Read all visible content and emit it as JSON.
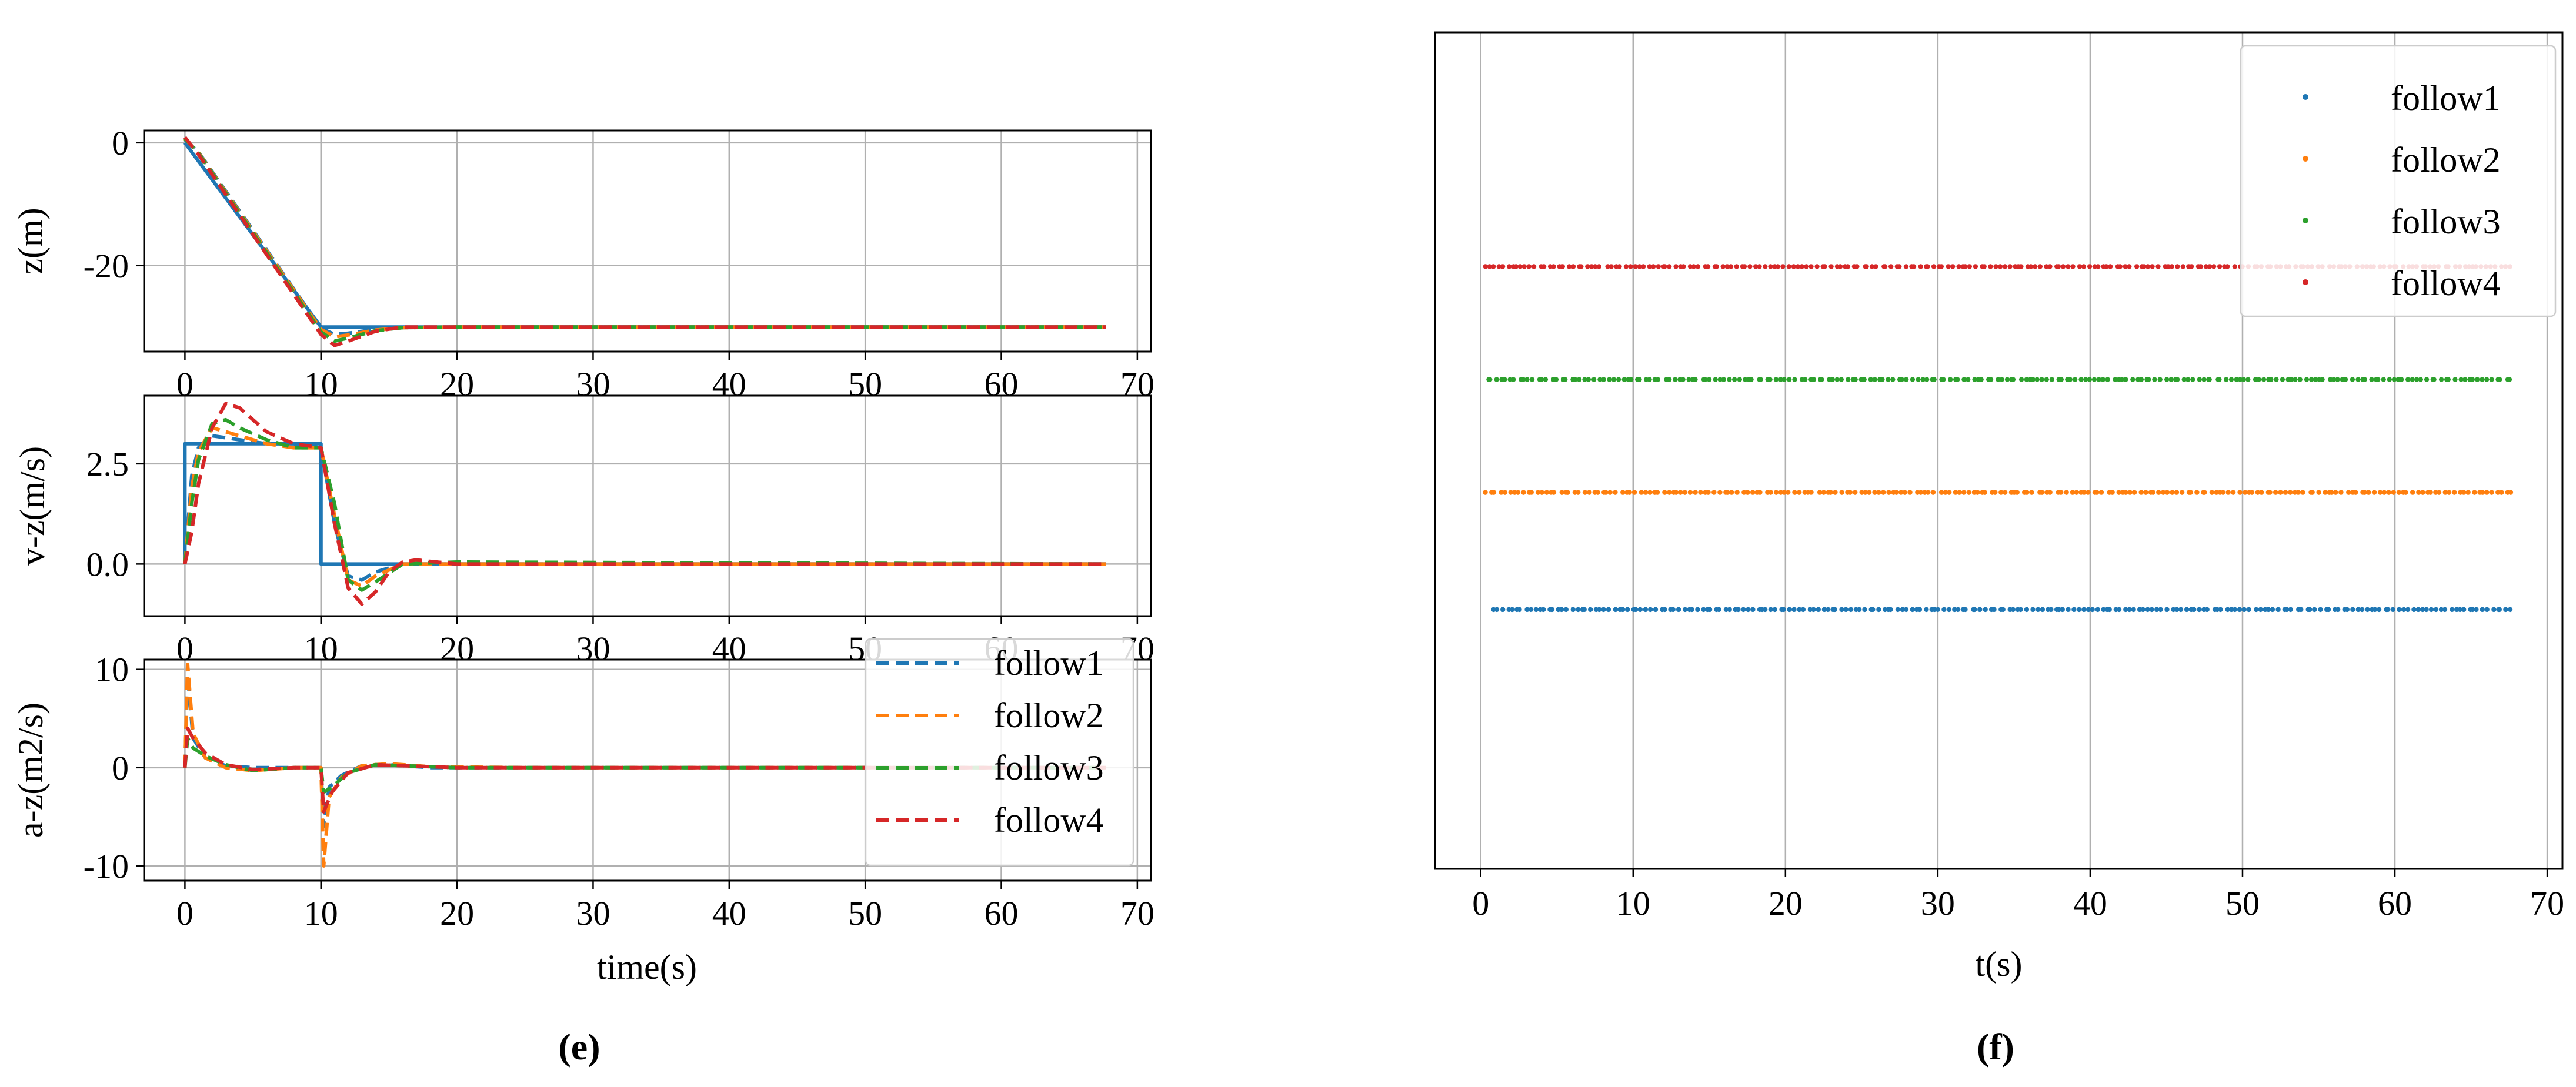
{
  "colors": {
    "reference": "#1f77b4",
    "follow1": "#1f77b4",
    "follow2": "#ff7f0e",
    "follow3": "#2ca02c",
    "follow4": "#d62728"
  },
  "captions": {
    "e": "(e)",
    "f": "(f)"
  },
  "chart_data": [
    {
      "panel": "e-top",
      "type": "line",
      "ylabel": "z(m)",
      "xlim": [
        -3,
        71
      ],
      "ylim": [
        -34,
        2
      ],
      "xticks": [
        0,
        10,
        20,
        30,
        40,
        50,
        60,
        70
      ],
      "xtick_labels": [
        "0",
        "10",
        "20",
        "30",
        "40",
        "50",
        "60",
        "70"
      ],
      "yticks": [
        0,
        -20
      ],
      "ytick_labels": [
        "0",
        "-20"
      ],
      "grid": true,
      "series": [
        {
          "style": "solid",
          "color": "reference",
          "x": [
            0,
            10,
            67.7
          ],
          "y": [
            0,
            -30,
            -30
          ]
        },
        {
          "style": "dashed",
          "color": "follow1",
          "x": [
            0,
            1,
            10,
            11,
            12,
            14,
            16,
            20,
            67.7
          ],
          "y": [
            0.5,
            -1.5,
            -30.2,
            -31.2,
            -31.0,
            -30.4,
            -30.1,
            -30.0,
            -30.0
          ]
        },
        {
          "style": "dashed",
          "color": "follow2",
          "x": [
            0,
            1,
            10,
            11,
            12,
            14,
            16,
            20,
            67.7
          ],
          "y": [
            0.6,
            -1.6,
            -30.4,
            -31.6,
            -31.3,
            -30.5,
            -30.1,
            -30.0,
            -30.0
          ]
        },
        {
          "style": "dashed",
          "color": "follow3",
          "x": [
            0,
            1,
            10,
            11,
            12,
            14,
            16,
            20,
            67.7
          ],
          "y": [
            0.7,
            -1.7,
            -30.8,
            -32.3,
            -31.8,
            -30.6,
            -30.1,
            -30.0,
            -30.0
          ]
        },
        {
          "style": "dashed",
          "color": "follow4",
          "x": [
            0,
            1,
            10,
            11,
            12,
            14,
            16,
            20,
            67.7
          ],
          "y": [
            0.9,
            -1.9,
            -31.2,
            -33.0,
            -32.3,
            -30.7,
            -30.0,
            -30.0,
            -30.0
          ]
        }
      ]
    },
    {
      "panel": "e-middle",
      "type": "line",
      "ylabel": "v-z(m/s)",
      "xlim": [
        -3,
        71
      ],
      "ylim": [
        -1.3,
        4.2
      ],
      "xticks": [
        0,
        10,
        20,
        30,
        40,
        50,
        60,
        70
      ],
      "xtick_labels": [
        "0",
        "10",
        "20",
        "30",
        "40",
        "50",
        "60",
        "70"
      ],
      "yticks": [
        2.5,
        0.0
      ],
      "ytick_labels": [
        "2.5",
        "0.0"
      ],
      "grid": true,
      "series": [
        {
          "style": "solid",
          "color": "reference",
          "x": [
            0,
            0,
            10,
            10,
            67.7
          ],
          "y": [
            0,
            3.0,
            3.0,
            0,
            0
          ]
        },
        {
          "style": "dashed",
          "color": "follow1",
          "x": [
            0,
            0.5,
            1,
            2,
            4,
            6,
            8,
            10,
            11,
            12,
            13,
            14,
            16,
            20,
            67.7
          ],
          "y": [
            0,
            2.2,
            2.9,
            3.2,
            3.1,
            3.0,
            3.0,
            2.9,
            1.0,
            -0.3,
            -0.4,
            -0.2,
            0.0,
            0.0,
            0.0
          ]
        },
        {
          "style": "dashed",
          "color": "follow2",
          "x": [
            0,
            0.5,
            1,
            2,
            4,
            6,
            8,
            10,
            11,
            12,
            13,
            14,
            16,
            20,
            67.7
          ],
          "y": [
            0,
            1.9,
            2.8,
            3.4,
            3.2,
            3.0,
            2.9,
            2.9,
            1.2,
            -0.4,
            -0.55,
            -0.3,
            0.0,
            0.0,
            0.0
          ]
        },
        {
          "style": "dashed",
          "color": "follow3",
          "x": [
            0,
            0.5,
            1,
            2,
            3,
            4,
            6,
            8,
            10,
            11,
            12,
            13,
            14,
            16,
            20,
            67.7
          ],
          "y": [
            0,
            1.5,
            2.6,
            3.5,
            3.6,
            3.4,
            3.1,
            2.9,
            2.9,
            1.5,
            -0.4,
            -0.65,
            -0.45,
            0.0,
            0.05,
            0.0
          ]
        },
        {
          "style": "dashed",
          "color": "follow4",
          "x": [
            0,
            0.5,
            1,
            2,
            3,
            4,
            5,
            6,
            8,
            10,
            11,
            12,
            13,
            14,
            15,
            16,
            17,
            20,
            67.7
          ],
          "y": [
            0,
            0.8,
            2.0,
            3.4,
            4.0,
            3.9,
            3.6,
            3.3,
            3.0,
            2.9,
            1.0,
            -0.6,
            -1.0,
            -0.7,
            -0.2,
            0.05,
            0.1,
            0.0,
            0.0
          ]
        }
      ]
    },
    {
      "panel": "e-bottom",
      "type": "line",
      "xlabel": "time(s)",
      "ylabel": "a-z(m2/s)",
      "xlim": [
        -3,
        71
      ],
      "ylim": [
        -11.5,
        11.0
      ],
      "xticks": [
        0,
        10,
        20,
        30,
        40,
        50,
        60,
        70
      ],
      "xtick_labels": [
        "0",
        "10",
        "20",
        "30",
        "40",
        "50",
        "60",
        "70"
      ],
      "yticks": [
        10,
        0,
        -10
      ],
      "ytick_labels": [
        "10",
        "0",
        "-10"
      ],
      "grid": true,
      "legend": "top-right",
      "series": [
        {
          "name": "follow1",
          "style": "dashed",
          "color": "follow1",
          "x": [
            0,
            0.2,
            0.6,
            1.5,
            3,
            5,
            8,
            10,
            10.2,
            10.6,
            11.5,
            13,
            15,
            18,
            25,
            67.7
          ],
          "y": [
            0,
            9.5,
            3.0,
            1.0,
            0.2,
            0.0,
            0.0,
            0.0,
            -6.0,
            -2.0,
            -0.8,
            0.2,
            0.3,
            0.0,
            0.0,
            0.0
          ]
        },
        {
          "name": "follow2",
          "style": "dashed",
          "color": "follow2",
          "x": [
            0,
            0.2,
            0.6,
            1.5,
            3,
            5,
            8,
            10,
            10.2,
            10.6,
            11.5,
            13,
            15,
            18,
            25,
            67.7
          ],
          "y": [
            0,
            10.5,
            3.5,
            1.0,
            0.0,
            -0.3,
            0.0,
            0.0,
            -10.0,
            -3.0,
            -1.0,
            0.2,
            0.4,
            0.1,
            0.0,
            0.0
          ]
        },
        {
          "name": "follow3",
          "style": "dashed",
          "color": "follow3",
          "x": [
            0,
            0.2,
            0.6,
            1.5,
            3,
            5,
            8,
            10,
            10.2,
            10.8,
            12,
            14,
            16,
            20,
            67.7
          ],
          "y": [
            0,
            3.0,
            2.0,
            1.2,
            0.3,
            -0.3,
            0.0,
            0.0,
            -2.5,
            -2.0,
            -0.5,
            0.3,
            0.2,
            0.0,
            0.0
          ]
        },
        {
          "name": "follow4",
          "style": "dashed",
          "color": "follow4",
          "x": [
            0,
            0.2,
            0.6,
            1.5,
            3,
            5,
            8,
            10,
            10.2,
            10.8,
            12,
            14,
            16,
            20,
            67.7
          ],
          "y": [
            0,
            4.0,
            3.0,
            1.5,
            0.3,
            -0.2,
            0.0,
            0.0,
            -4.5,
            -2.5,
            -0.5,
            0.3,
            0.2,
            0.0,
            0.0
          ]
        }
      ]
    },
    {
      "panel": "f",
      "type": "scatter",
      "xlabel": "t(s)",
      "xlim": [
        -3,
        71
      ],
      "ylim": [
        0,
        10
      ],
      "xticks": [
        0,
        10,
        20,
        30,
        40,
        50,
        60,
        70
      ],
      "xtick_labels": [
        "0",
        "10",
        "20",
        "30",
        "40",
        "50",
        "60",
        "70"
      ],
      "grid": "x-only",
      "legend": "top-right",
      "series": [
        {
          "name": "follow1",
          "color": "follow1",
          "y": 3.1,
          "t_start": 0.8,
          "t_end": 67.6,
          "count": 220
        },
        {
          "name": "follow2",
          "color": "follow2",
          "y": 4.5,
          "t_start": 0.3,
          "t_end": 67.6,
          "count": 220
        },
        {
          "name": "follow3",
          "color": "follow3",
          "y": 5.85,
          "t_start": 0.4,
          "t_end": 67.6,
          "count": 220
        },
        {
          "name": "follow4",
          "color": "follow4",
          "y": 7.2,
          "t_start": 0.2,
          "t_end": 67.6,
          "count": 220
        }
      ]
    }
  ]
}
